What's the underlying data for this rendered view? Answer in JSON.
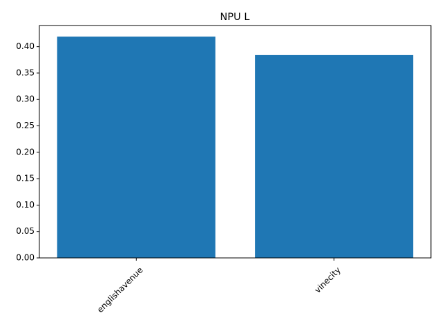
{
  "chart_data": {
    "type": "bar",
    "title": "NPU L",
    "xlabel": "",
    "ylabel": "",
    "categories": [
      "englishavenue",
      "vinecity"
    ],
    "values": [
      0.419,
      0.384
    ],
    "ylim": [
      0,
      0.44
    ],
    "yticks": [
      0.0,
      0.05,
      0.1,
      0.15,
      0.2,
      0.25,
      0.3,
      0.35,
      0.4
    ],
    "ytick_labels": [
      "0.00",
      "0.05",
      "0.10",
      "0.15",
      "0.20",
      "0.25",
      "0.30",
      "0.35",
      "0.40"
    ],
    "xtick_rotation": 45,
    "grid": false,
    "legend": "none",
    "bar_color": "#1f77b4"
  }
}
